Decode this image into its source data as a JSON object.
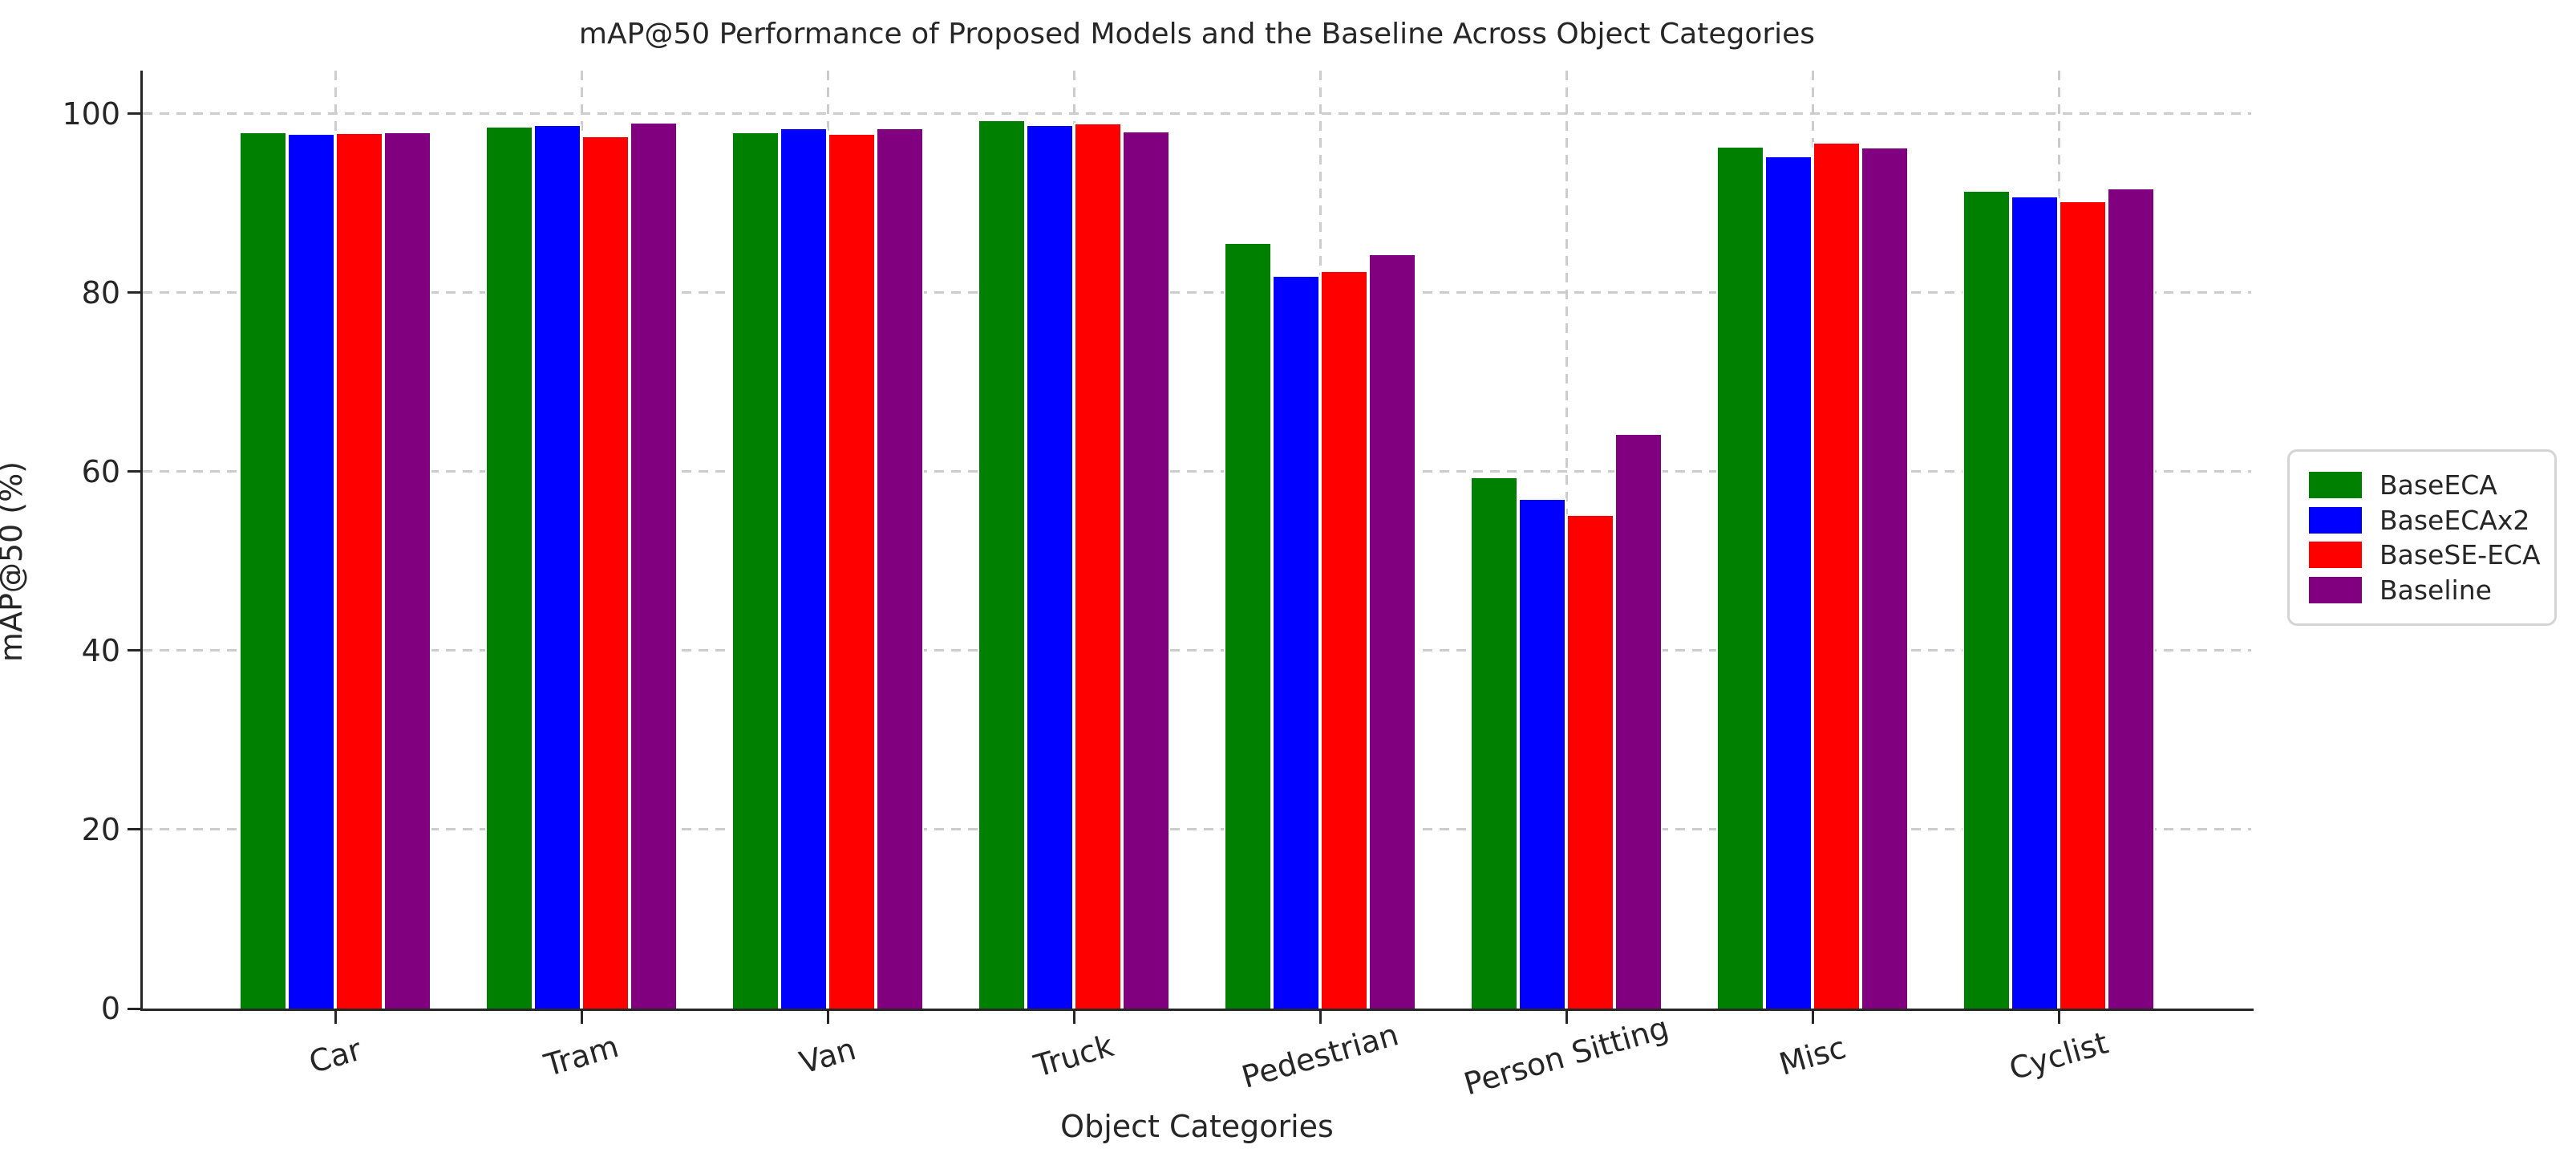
{
  "chart_data": {
    "type": "bar",
    "title": "mAP@50 Performance of Proposed Models and the Baseline Across Object Categories",
    "xlabel": "Object Categories",
    "ylabel": "mAP@50 (%)",
    "categories": [
      "Car",
      "Tram",
      "Van",
      "Truck",
      "Pedestrian",
      "Person Sitting",
      "Misc",
      "Cyclist"
    ],
    "series": [
      {
        "name": "BaseECA",
        "color": "#008000",
        "values": [
          98.0,
          98.6,
          98.0,
          99.3,
          85.6,
          59.4,
          96.4,
          91.4
        ]
      },
      {
        "name": "BaseECAx2",
        "color": "#0000ff",
        "values": [
          97.8,
          98.8,
          98.4,
          98.8,
          81.9,
          57.0,
          95.3,
          90.8
        ]
      },
      {
        "name": "BaseSE-ECA",
        "color": "#ff0000",
        "values": [
          97.9,
          97.5,
          97.8,
          99.0,
          82.5,
          55.2,
          96.8,
          90.3
        ]
      },
      {
        "name": "Baseline",
        "color": "#800080",
        "values": [
          98.0,
          99.1,
          98.4,
          98.1,
          84.4,
          64.3,
          96.3,
          91.7
        ]
      }
    ],
    "yticks": [
      0,
      20,
      40,
      60,
      80,
      100
    ],
    "ylim": [
      0,
      104.8
    ],
    "grid": true,
    "grid_style": "dashed",
    "grid_color": "#cccccc",
    "legend_position": "right-outside",
    "background_color": "#ffffff",
    "text_color": "#262626"
  }
}
